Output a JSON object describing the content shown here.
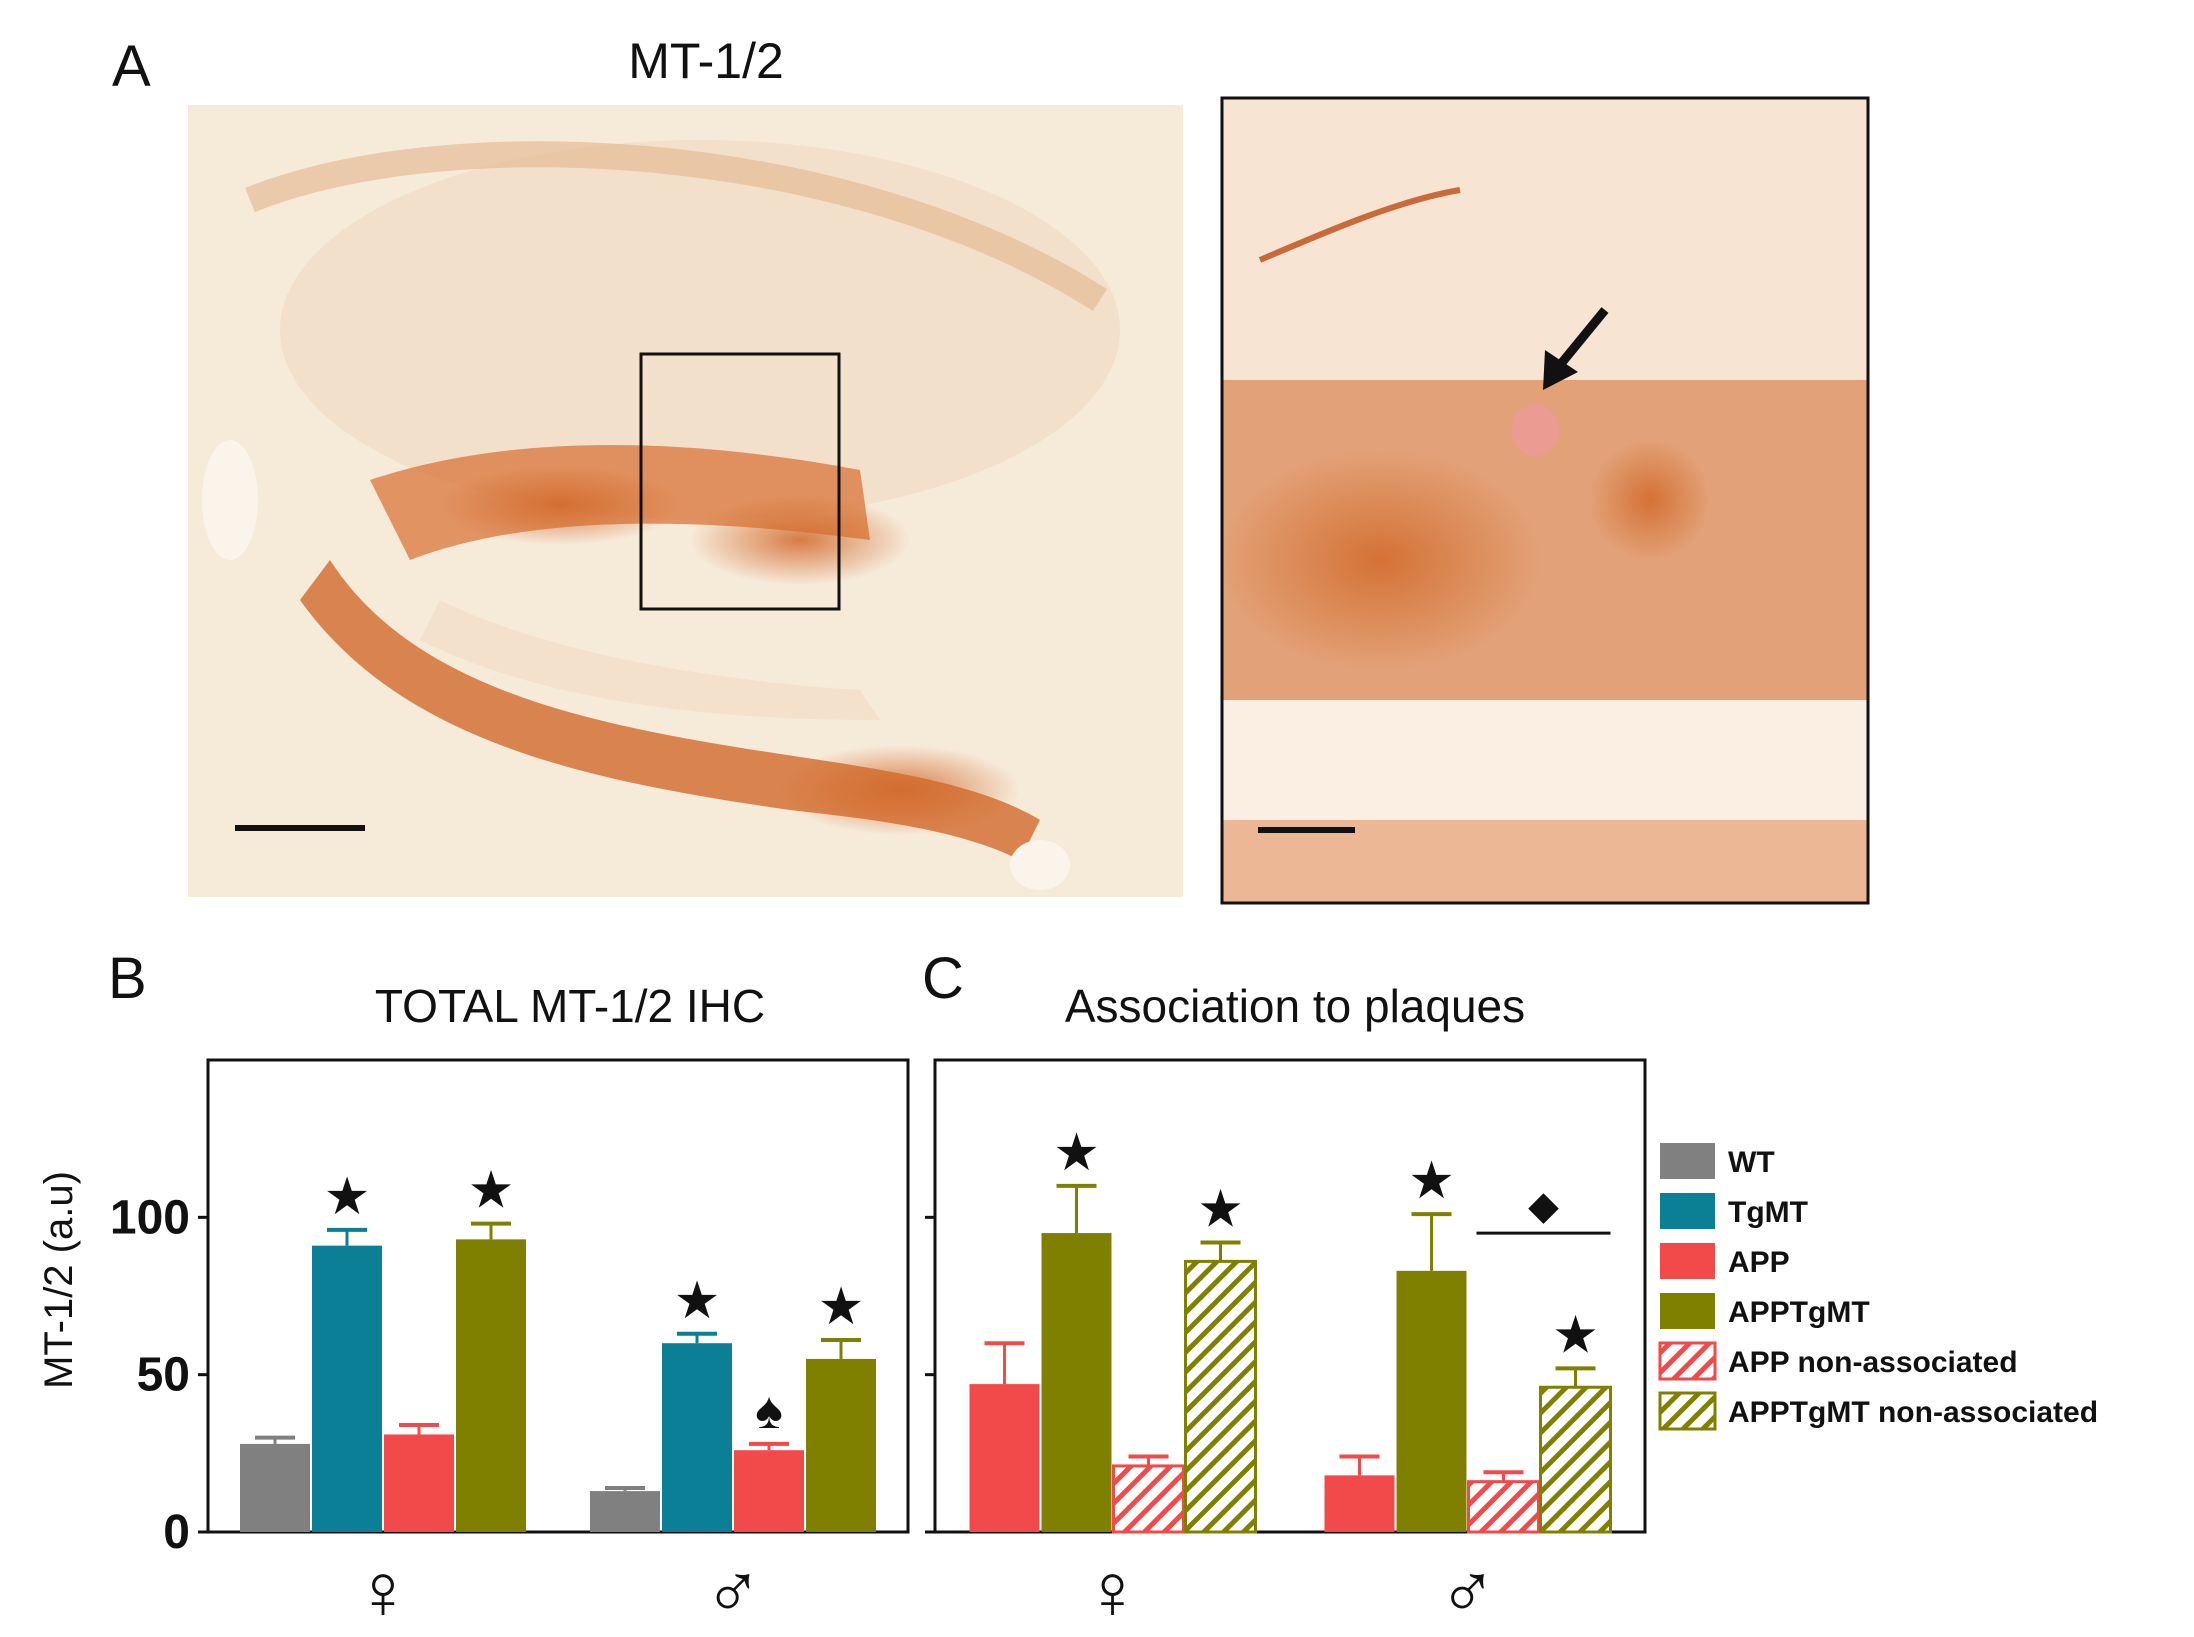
{
  "panel_labels": {
    "a": "A",
    "b": "B",
    "c": "C"
  },
  "titles": {
    "a": "MT-1/2",
    "b": "TOTAL MT-1/2 IHC",
    "c": "Association to plaques"
  },
  "colors": {
    "wt": "#808080",
    "tgmt": "#0a7f96",
    "app": "#f24a4a",
    "apptgmt": "#808000",
    "tissue_bg": "#f6ead9",
    "stain": "#d9763a"
  },
  "legend": [
    {
      "label": "WT",
      "color": "#808080",
      "hatched": false
    },
    {
      "label": "TgMT",
      "color": "#0a7f96",
      "hatched": false
    },
    {
      "label": "APP",
      "color": "#f24a4a",
      "hatched": false
    },
    {
      "label": "APPTgMT",
      "color": "#808000",
      "hatched": false
    },
    {
      "label": "APP non-associated",
      "color": "#f24a4a",
      "hatched": true
    },
    {
      "label": "APPTgMT non-associated",
      "color": "#808000",
      "hatched": true
    }
  ],
  "marks": {
    "star": "★",
    "spade": "♠",
    "diamond": "◆"
  },
  "chart_data": [
    {
      "type": "bar",
      "title": "TOTAL MT-1/2 IHC",
      "ylabel": "MT-1/2 (a.u)",
      "xlabel": "",
      "ylim": [
        0,
        150
      ],
      "yticks": [
        0,
        50,
        100
      ],
      "categories": [
        "♀",
        "♂"
      ],
      "series": [
        {
          "name": "WT",
          "color": "#808080",
          "hatched": false,
          "values": [
            28,
            13
          ],
          "errors": [
            2,
            1
          ],
          "marks": [
            "",
            ""
          ]
        },
        {
          "name": "TgMT",
          "color": "#0a7f96",
          "hatched": false,
          "values": [
            91,
            60
          ],
          "errors": [
            5,
            3
          ],
          "marks": [
            "★",
            "★"
          ]
        },
        {
          "name": "APP",
          "color": "#f24a4a",
          "hatched": false,
          "values": [
            31,
            26
          ],
          "errors": [
            3,
            2
          ],
          "marks": [
            "",
            "♠"
          ]
        },
        {
          "name": "APPTgMT",
          "color": "#808000",
          "hatched": false,
          "values": [
            93,
            55
          ],
          "errors": [
            5,
            6
          ],
          "marks": [
            "★",
            "★"
          ]
        }
      ]
    },
    {
      "type": "bar",
      "title": "Association to plaques",
      "ylabel": "MT-1/2 (a.u)",
      "xlabel": "",
      "ylim": [
        0,
        150
      ],
      "yticks": [
        0,
        50,
        100
      ],
      "categories": [
        "♀",
        "♂"
      ],
      "series": [
        {
          "name": "APP",
          "color": "#f24a4a",
          "hatched": false,
          "values": [
            47,
            18
          ],
          "errors": [
            13,
            6
          ],
          "marks": [
            "",
            ""
          ]
        },
        {
          "name": "APPTgMT",
          "color": "#808000",
          "hatched": false,
          "values": [
            95,
            83
          ],
          "errors": [
            15,
            18
          ],
          "marks": [
            "★",
            "★"
          ]
        },
        {
          "name": "APP non-associated",
          "color": "#f24a4a",
          "hatched": true,
          "values": [
            21,
            16
          ],
          "errors": [
            3,
            3
          ],
          "marks": [
            "",
            ""
          ]
        },
        {
          "name": "APPTgMT non-associated",
          "color": "#808000",
          "hatched": true,
          "values": [
            86,
            46
          ],
          "errors": [
            6,
            6
          ],
          "marks": [
            "★",
            "★"
          ]
        }
      ],
      "annotations": [
        {
          "text": "◆",
          "category": "♂",
          "between": [
            "APPTgMT",
            "APPTgMT non-associated"
          ]
        }
      ]
    }
  ]
}
